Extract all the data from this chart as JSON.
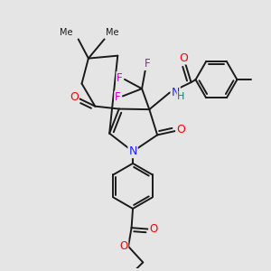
{
  "bg_color": "#e5e5e5",
  "bond_color": "#1a1a1a",
  "bond_width": 1.4,
  "atom_colors": {
    "O": "#ff0000",
    "N": "#2020ff",
    "F": "#cc00cc",
    "H": "#008080",
    "C": "#1a1a1a"
  }
}
